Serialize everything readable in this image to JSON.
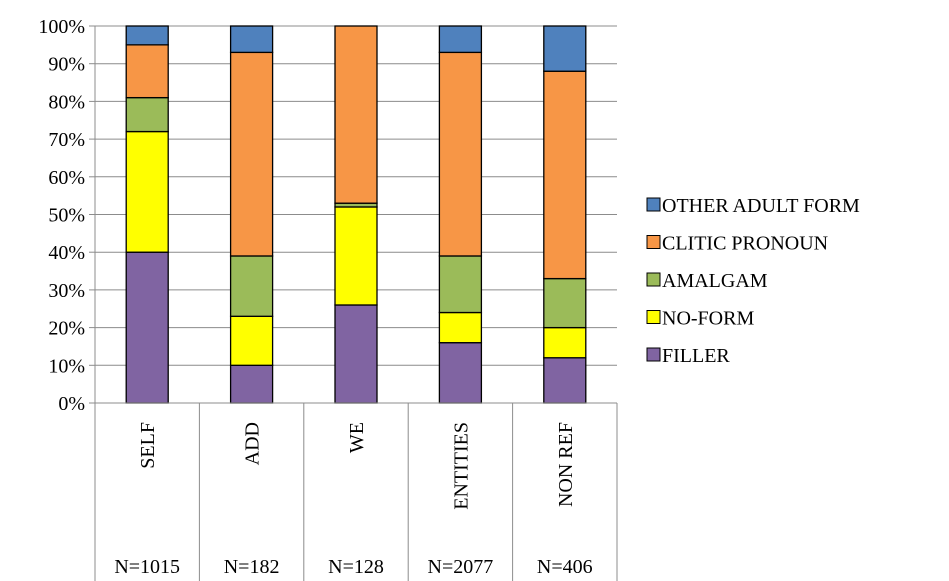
{
  "chart_data": {
    "type": "bar",
    "stacked": true,
    "percent": true,
    "categories": [
      "SELF",
      "ADD",
      "WE",
      "ENTITIES",
      "NON REF"
    ],
    "n_labels": [
      "N=1015",
      "N=182",
      "N=128",
      "N=2077",
      "N=406"
    ],
    "series": [
      {
        "name": "FILLER",
        "color": "#8064A2",
        "values": [
          40,
          10,
          26,
          16,
          12
        ]
      },
      {
        "name": "NO-FORM",
        "color": "#FFFF00",
        "values": [
          32,
          13,
          26,
          8,
          8
        ]
      },
      {
        "name": "AMALGAM",
        "color": "#9BBB59",
        "values": [
          9,
          16,
          1,
          15,
          13
        ]
      },
      {
        "name": "CLITIC PRONOUN",
        "color": "#F79646",
        "values": [
          14,
          54,
          47,
          54,
          55
        ]
      },
      {
        "name": "OTHER ADULT FORM",
        "color": "#4F81BD",
        "values": [
          5,
          7,
          0,
          7,
          12
        ]
      }
    ],
    "ylim": [
      0,
      100
    ],
    "yticks": [
      "0%",
      "10%",
      "20%",
      "30%",
      "40%",
      "50%",
      "60%",
      "70%",
      "80%",
      "90%",
      "100%"
    ],
    "grid": true,
    "legend_position": "right"
  }
}
